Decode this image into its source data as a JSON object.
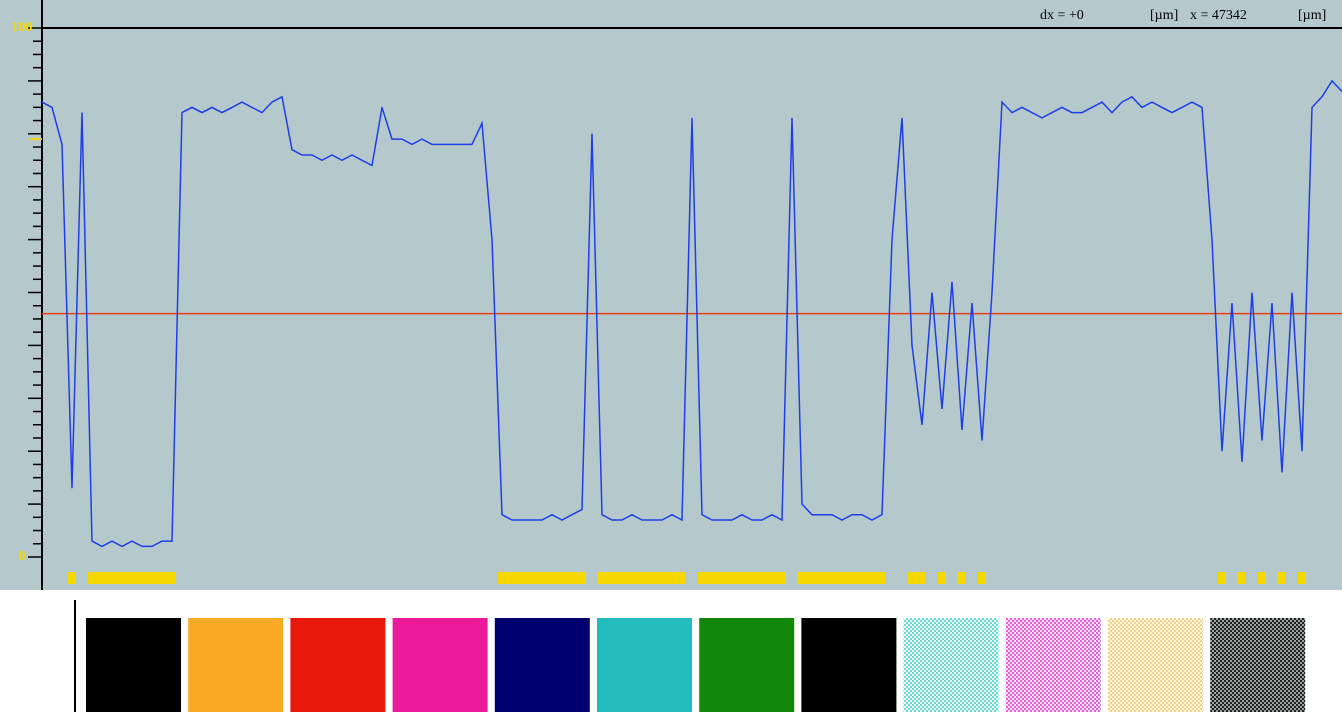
{
  "header": {
    "dx_label": "dx = +0",
    "dx_unit": "[µm]",
    "x_label": "x = 47342",
    "x_unit": "[µm]"
  },
  "chart_data": {
    "type": "line",
    "values": [
      86,
      85,
      78,
      13,
      84,
      3,
      2,
      3,
      2,
      3,
      2,
      2,
      3,
      3,
      84,
      85,
      84,
      85,
      84,
      85,
      86,
      85,
      84,
      86,
      87,
      77,
      76,
      76,
      75,
      76,
      75,
      76,
      75,
      74,
      85,
      79,
      79,
      78,
      79,
      78,
      78,
      78,
      78,
      78,
      82,
      60,
      8,
      7,
      7,
      7,
      7,
      8,
      7,
      8,
      9,
      80,
      8,
      7,
      7,
      8,
      7,
      7,
      7,
      8,
      7,
      83,
      8,
      7,
      7,
      7,
      8,
      7,
      7,
      8,
      7,
      83,
      10,
      8,
      8,
      8,
      7,
      8,
      8,
      7,
      8,
      60,
      83,
      40,
      25,
      50,
      28,
      52,
      24,
      48,
      22,
      50,
      86,
      84,
      85,
      84,
      83,
      84,
      85,
      84,
      84,
      85,
      86,
      84,
      86,
      87,
      85,
      86,
      85,
      84,
      85,
      86,
      85,
      60,
      20,
      48,
      18,
      50,
      22,
      48,
      16,
      50,
      20,
      85,
      87,
      90,
      88
    ],
    "color": "#1e3fe6",
    "ylim": [
      0,
      100
    ],
    "yticks": [
      0,
      100
    ],
    "minor_yticks": [
      0,
      2.5,
      5,
      7.5,
      10,
      12.5,
      15,
      17.5,
      20,
      22.5,
      25,
      27.5,
      30,
      32.5,
      35,
      37.5,
      40,
      42.5,
      45,
      47.5,
      50,
      52.5,
      55,
      57.5,
      60,
      62.5,
      65,
      67.5,
      70,
      72.5,
      75,
      77.5,
      80,
      82.5,
      85,
      87.5,
      90,
      92.5,
      95,
      97.5,
      100
    ],
    "threshold": 46,
    "threshold_color": "#e8401a",
    "marker": 79,
    "marker_color": "#f5d800",
    "segment_color": "#f5d800"
  },
  "swatches": [
    {
      "colors": [
        "#000000"
      ]
    },
    {
      "colors": [
        "#f9ab24"
      ]
    },
    {
      "colors": [
        "#e8190b"
      ]
    },
    {
      "colors": [
        "#ea1a9b"
      ]
    },
    {
      "colors": [
        "#00006e"
      ]
    },
    {
      "colors": [
        "#22bcbc"
      ]
    },
    {
      "colors": [
        "#12880a"
      ]
    },
    {
      "colors": [
        "#000000"
      ]
    },
    {
      "colors": [
        "#6fd6cc",
        "#e8fbf8"
      ]
    },
    {
      "colors": [
        "#e860e0",
        "#fbe3f8"
      ]
    },
    {
      "colors": [
        "#f2cf8a",
        "#fff6e0"
      ]
    },
    {
      "colors": [
        "#222222",
        "#9aa0a0"
      ]
    }
  ]
}
